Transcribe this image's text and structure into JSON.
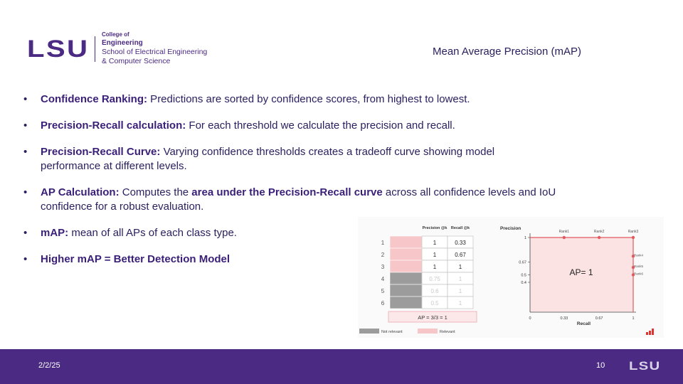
{
  "header": {
    "logo_mark": "LSU",
    "college_of": "College of",
    "engineering": "Engineering",
    "school_line1": "School of Electrical Engineering",
    "school_line2": "& Computer Science",
    "title": "Mean Average Precision (mAP)"
  },
  "bullets": [
    {
      "bold": "Confidence Ranking:",
      "text": " Predictions are sorted by confidence scores, from highest to lowest."
    },
    {
      "bold": "Precision-Recall calculation:",
      "text": " For each threshold we calculate the precision and recall."
    },
    {
      "bold": "Precision-Recall Curve:",
      "text": " Varying confidence thresholds creates a tradeoff curve showing model performance at different levels."
    },
    {
      "bold": "AP Calculation:",
      "text": " Computes the ",
      "bold2": "area under the Precision-Recall curve",
      "text2": " across all confidence levels and IoU confidence for a robust evaluation."
    },
    {
      "bold": "mAP:",
      "text": " mean of all APs of each class type."
    },
    {
      "bold": "Higher mAP = Better Detection Model",
      "text": ""
    }
  ],
  "figure": {
    "table": {
      "col_headers": [
        "Precision @k",
        "Recall @k"
      ],
      "rows": [
        {
          "rank": "1",
          "precision": "1",
          "recall": "0.33",
          "relevant": true
        },
        {
          "rank": "2",
          "precision": "1",
          "recall": "0.67",
          "relevant": true
        },
        {
          "rank": "3",
          "precision": "1",
          "recall": "1",
          "relevant": true
        },
        {
          "rank": "4",
          "precision": "0.75",
          "recall": "1",
          "relevant": false
        },
        {
          "rank": "5",
          "precision": "0.6",
          "recall": "1",
          "relevant": false
        },
        {
          "rank": "6",
          "precision": "0.5",
          "recall": "1",
          "relevant": false
        }
      ],
      "ap_label": "AP = 3/3 = 1",
      "legend_not_relevant": "Not relevant",
      "legend_relevant": "Relevant",
      "relevant_color": "#f7c6c8",
      "not_relevant_color": "#9c9c9c"
    },
    "pr_chart": {
      "ylabel": "Precision",
      "xlabel": "Recall",
      "y_ticks": [
        "1",
        "0.67",
        "0.5",
        "0.4"
      ],
      "x_ticks": [
        "0",
        "0.33",
        "0.67",
        "1"
      ],
      "top_labels": [
        "Rank1",
        "Rank2",
        "Rank3"
      ],
      "right_labels": [
        "Rank4",
        "Rank5",
        "Rank6"
      ],
      "ap_text": "AP= 1",
      "points": [
        {
          "rank": "Rank1",
          "recall": 0.33,
          "precision": 1
        },
        {
          "rank": "Rank2",
          "recall": 0.67,
          "precision": 1
        },
        {
          "rank": "Rank3",
          "recall": 1,
          "precision": 1
        },
        {
          "rank": "Rank4",
          "recall": 1,
          "precision": 0.75
        },
        {
          "rank": "Rank5",
          "recall": 1,
          "precision": 0.6
        },
        {
          "rank": "Rank6",
          "recall": 1,
          "precision": 0.5
        }
      ],
      "fill_color": "#fbe3e4",
      "line_color": "#e05a5f"
    }
  },
  "footer": {
    "date": "2/2/25",
    "page": "10",
    "logo": "LSU"
  },
  "colors": {
    "brand_purple": "#4a2a82",
    "text_navy": "#2b2060"
  }
}
